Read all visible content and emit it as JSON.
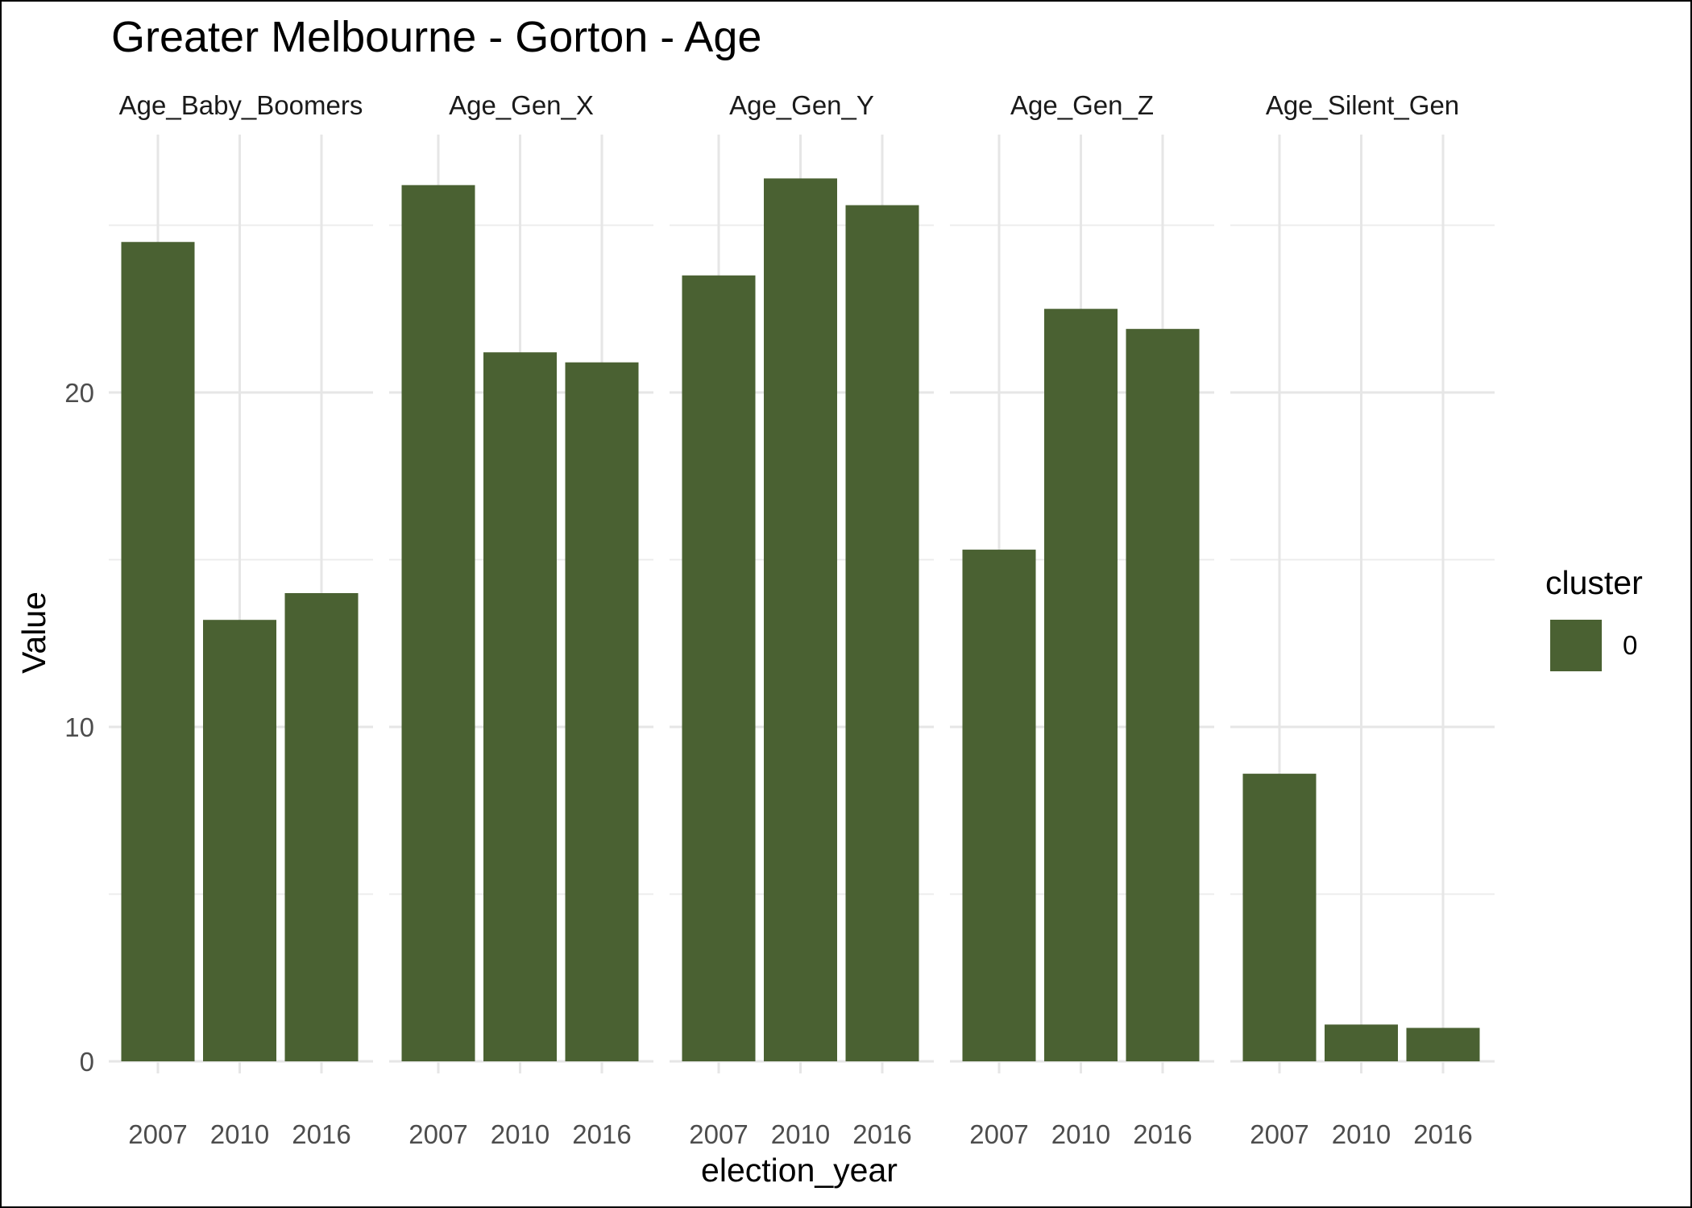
{
  "chart_data": {
    "type": "bar",
    "title": "Greater Melbourne - Gorton - Age",
    "xlabel": "election_year",
    "ylabel": "Value",
    "ylim": [
      0,
      27.5
    ],
    "y_ticks": [
      0,
      10,
      20
    ],
    "grid": true,
    "facet_by": "variable",
    "categories": [
      "2007",
      "2010",
      "2016"
    ],
    "facets": [
      {
        "name": "Age_Baby_Boomers",
        "values": [
          24.5,
          13.2,
          14.0
        ]
      },
      {
        "name": "Age_Gen_X",
        "values": [
          26.2,
          21.2,
          20.9
        ]
      },
      {
        "name": "Age_Gen_Y",
        "values": [
          23.5,
          26.4,
          25.6
        ]
      },
      {
        "name": "Age_Gen_Z",
        "values": [
          15.3,
          22.5,
          21.9
        ]
      },
      {
        "name": "Age_Silent_Gen",
        "values": [
          8.6,
          1.1,
          1.0
        ]
      }
    ],
    "legend": {
      "title": "cluster",
      "position": "right",
      "entries": [
        {
          "label": "0",
          "color": "#4a6132"
        }
      ]
    },
    "bar_color": "#4a6132"
  }
}
